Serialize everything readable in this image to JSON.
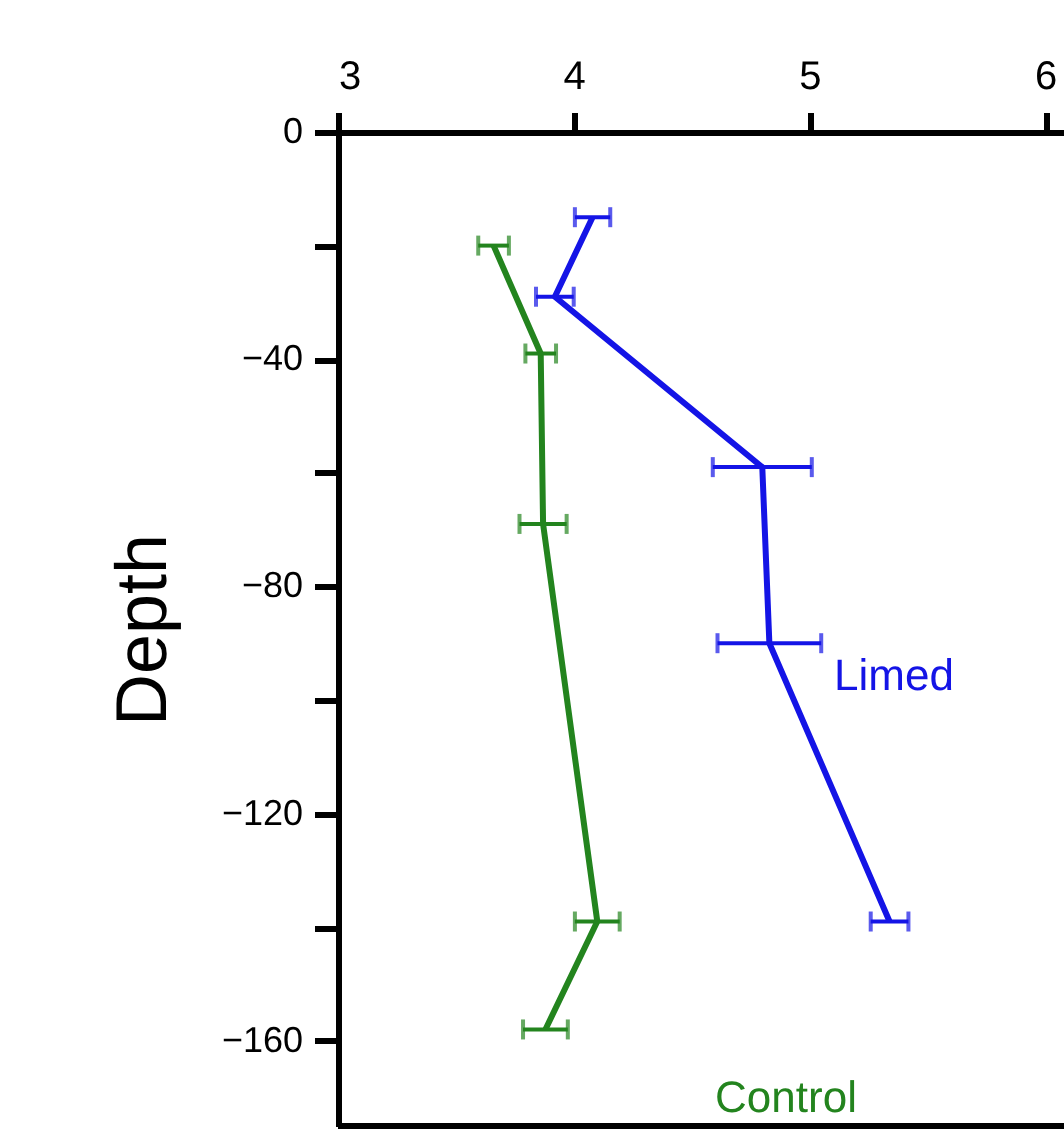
{
  "chart_data": {
    "type": "line",
    "ylabel": "Depth",
    "xlim": [
      3,
      6.08
    ],
    "xticks": [
      3,
      4,
      5,
      6
    ],
    "ylim": [
      -175,
      0
    ],
    "yticks": [
      0,
      {
        "value": -20,
        "label": null
      },
      -40,
      {
        "value": -60,
        "label": null
      },
      -80,
      {
        "value": -100,
        "label": null
      },
      -120,
      {
        "value": -140,
        "label": null
      },
      -160
    ],
    "grid": false,
    "marker": "none",
    "line_style": "solid",
    "series": [
      {
        "name": "Limed",
        "color": "#1414e6",
        "x": [
          4.08,
          3.92,
          4.8,
          4.83,
          5.34
        ],
        "values": [
          -15,
          -29,
          -59,
          -90,
          -139
        ],
        "xerrors": [
          0.075,
          0.08,
          0.21,
          0.22,
          0.08
        ]
      },
      {
        "name": "Control",
        "color": "#23841e",
        "x": [
          3.66,
          3.86,
          3.87,
          4.1,
          3.88
        ],
        "values": [
          -20,
          -39,
          -69,
          -139,
          -158
        ],
        "xerrors": [
          0.065,
          0.065,
          0.1,
          0.095,
          0.095
        ]
      }
    ]
  }
}
